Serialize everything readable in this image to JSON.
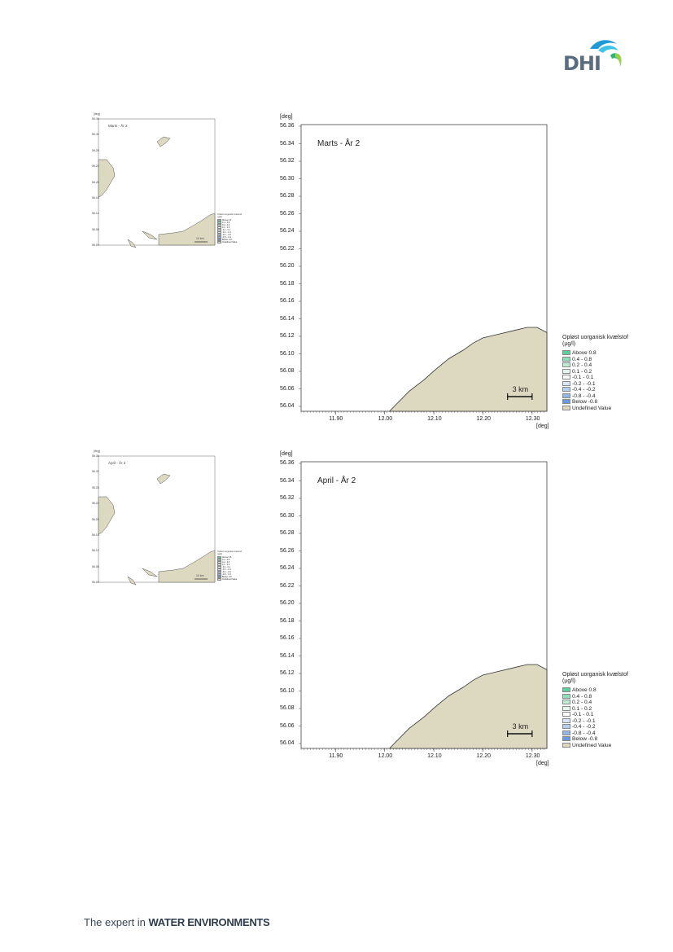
{
  "header": {
    "logo_text": "DHI"
  },
  "footer": {
    "prefix": "The expert in ",
    "emphasis": "WATER ENVIRONMENTS"
  },
  "legend": {
    "title": "Opløst uorganisk kvælstof",
    "unit": "(µg/l)",
    "items": [
      {
        "label": "Above  0.8",
        "color": "#5ecf9c"
      },
      {
        "label": "0.4 -  0.8",
        "color": "#8fe0b8"
      },
      {
        "label": "0.2 -  0.4",
        "color": "#bdeed4"
      },
      {
        "label": "0.1 -  0.2",
        "color": "#e3f7ec"
      },
      {
        "label": "-0.1 -  0.1",
        "color": "#ffffff"
      },
      {
        "label": "-0.2 - -0.1",
        "color": "#d9e6f7"
      },
      {
        "label": "-0.4 - -0.2",
        "color": "#b6cff0"
      },
      {
        "label": "-0.8 - -0.4",
        "color": "#92b6e8"
      },
      {
        "label": "Below -0.8",
        "color": "#6a9ade"
      },
      {
        "label": "Undefined Value",
        "color": "#ddd8c0"
      }
    ]
  },
  "axis_unit": "[deg]",
  "scale_bar_label": "3 km",
  "overview_scale_bar_label": "10 km",
  "y_ticks": [
    "56.36",
    "56.34",
    "56.32",
    "56.30",
    "56.28",
    "56.26",
    "56.24",
    "56.22",
    "56.20",
    "56.18",
    "56.16",
    "56.14",
    "56.12",
    "56.10",
    "56.08",
    "56.06",
    "56.04"
  ],
  "x_ticks": [
    "11.90",
    "12.00",
    "12.10",
    "12.20",
    "12.30"
  ],
  "panels": [
    {
      "title": "Marts - År 2",
      "overview_title": "Marts - År 2"
    },
    {
      "title": "April - År 2",
      "overview_title": "April - År 2"
    }
  ],
  "colors": {
    "land": "#ddd8c0",
    "land_stroke": "#555555",
    "logo_blue": "#1f9ad6",
    "logo_green": "#2bb673"
  }
}
